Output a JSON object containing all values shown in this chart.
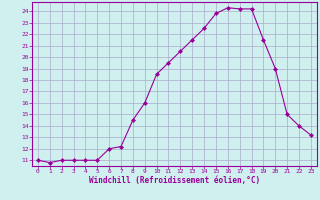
{
  "x": [
    0,
    1,
    2,
    3,
    4,
    5,
    6,
    7,
    8,
    9,
    10,
    11,
    12,
    13,
    14,
    15,
    16,
    17,
    18,
    19,
    20,
    21,
    22,
    23
  ],
  "y": [
    11,
    10.8,
    11,
    11,
    11,
    11,
    12,
    12.2,
    14.5,
    16,
    18.5,
    19.5,
    20.5,
    21.5,
    22.5,
    23.8,
    24.3,
    24.2,
    24.2,
    21.5,
    19,
    15,
    14,
    13.2
  ],
  "line_color": "#990099",
  "marker": "D",
  "marker_size": 2,
  "bg_color": "#d0f0f0",
  "grid_color": "#aaaacc",
  "xlabel": "Windchill (Refroidissement éolien,°C)",
  "xlabel_color": "#990099",
  "yticks": [
    11,
    12,
    13,
    14,
    15,
    16,
    17,
    18,
    19,
    20,
    21,
    22,
    23,
    24
  ],
  "ylim": [
    10.5,
    24.8
  ],
  "xlim": [
    -0.5,
    23.5
  ]
}
